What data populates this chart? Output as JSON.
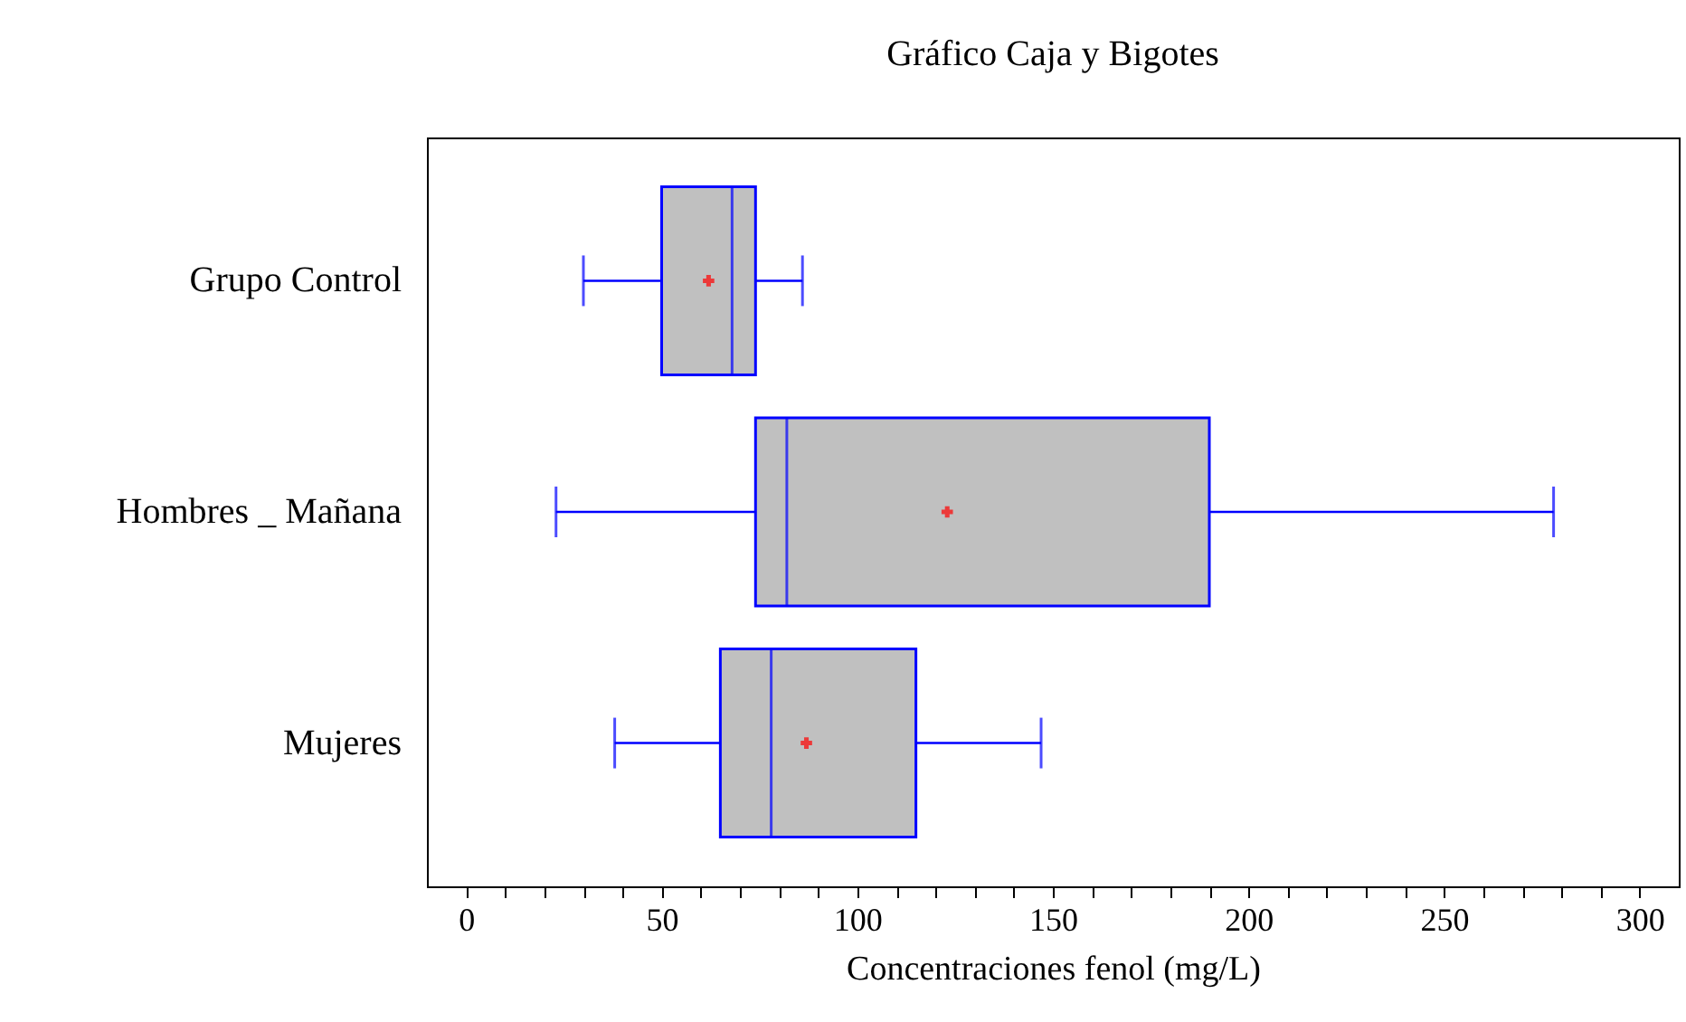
{
  "chart_data": {
    "type": "box",
    "orientation": "horizontal",
    "title": "Gráfico Caja y Bigotes",
    "xlabel": "Concentraciones fenol (mg/L)",
    "categories": [
      "Grupo Control",
      "Hombres _ Mañana",
      "Mujeres"
    ],
    "boxes": [
      {
        "low": 30,
        "q1": 50,
        "median": 68,
        "q3": 74,
        "high": 86,
        "mean": 62
      },
      {
        "low": 23,
        "q1": 74,
        "median": 82,
        "q3": 190,
        "high": 278,
        "mean": 123
      },
      {
        "low": 38,
        "q1": 65,
        "median": 78,
        "q3": 115,
        "high": 147,
        "mean": 87
      }
    ],
    "xlim": [
      -10,
      310
    ],
    "xticks": [
      0,
      {
        "value": 10,
        "label": null
      },
      {
        "value": 20,
        "label": null
      },
      {
        "value": 30,
        "label": null
      },
      {
        "value": 40,
        "label": null
      },
      50,
      {
        "value": 60,
        "label": null
      },
      {
        "value": 70,
        "label": null
      },
      {
        "value": 80,
        "label": null
      },
      {
        "value": 90,
        "label": null
      },
      100,
      {
        "value": 110,
        "label": null
      },
      {
        "value": 120,
        "label": null
      },
      {
        "value": 130,
        "label": null
      },
      {
        "value": 140,
        "label": null
      },
      150,
      {
        "value": 160,
        "label": null
      },
      {
        "value": 170,
        "label": null
      },
      {
        "value": 180,
        "label": null
      },
      {
        "value": 190,
        "label": null
      },
      200,
      {
        "value": 210,
        "label": null
      },
      {
        "value": 220,
        "label": null
      },
      {
        "value": 230,
        "label": null
      },
      {
        "value": 240,
        "label": null
      },
      250,
      {
        "value": 260,
        "label": null
      },
      {
        "value": 270,
        "label": null
      },
      {
        "value": 280,
        "label": null
      },
      {
        "value": 290,
        "label": null
      },
      300
    ]
  }
}
